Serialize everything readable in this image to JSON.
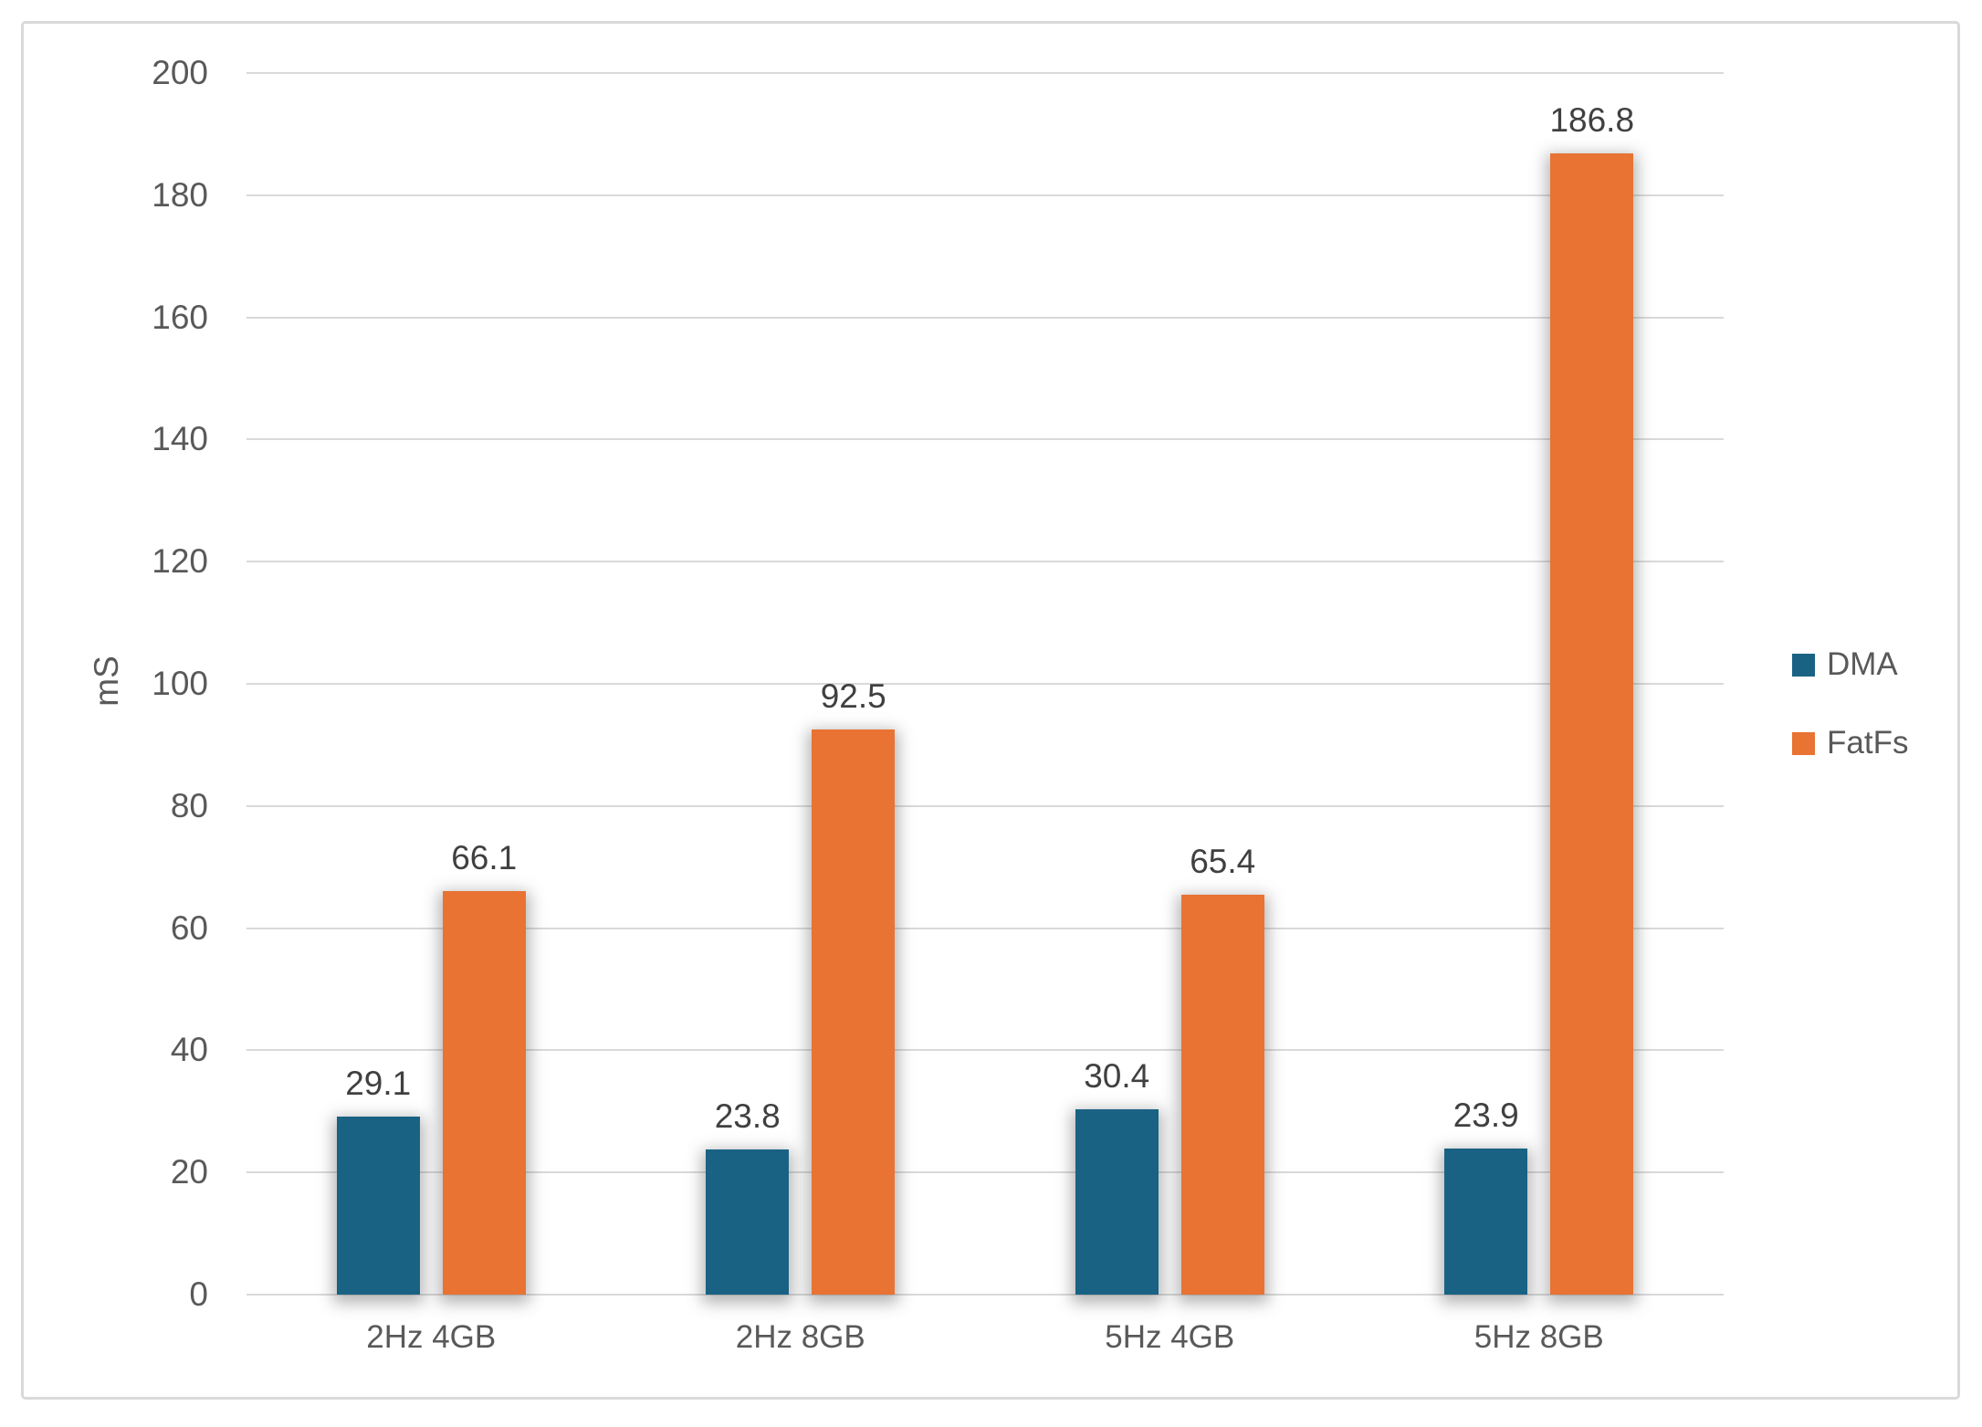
{
  "chart_data": {
    "type": "bar",
    "title": "",
    "categories": [
      "2Hz 4GB",
      "2Hz 8GB",
      "5Hz 4GB",
      "5Hz 8GB"
    ],
    "series": [
      {
        "name": "DMA",
        "color": "#196284",
        "values": [
          29.1,
          23.8,
          30.4,
          23.9
        ]
      },
      {
        "name": "FatFs",
        "color": "#e87333",
        "values": [
          66.1,
          92.5,
          65.4,
          186.8
        ]
      }
    ],
    "xlabel": "",
    "ylabel": "mS",
    "ylim": [
      0,
      200
    ],
    "ytick_step": 20,
    "grid": true,
    "legend_position": "right",
    "value_labels_decimals": 1
  },
  "style": {
    "gridline_color": "#d9d9d9",
    "frame_border_color": "#d9d9d9",
    "axis_text_color": "#595959",
    "value_label_color": "#404040",
    "background_color": "#ffffff"
  }
}
